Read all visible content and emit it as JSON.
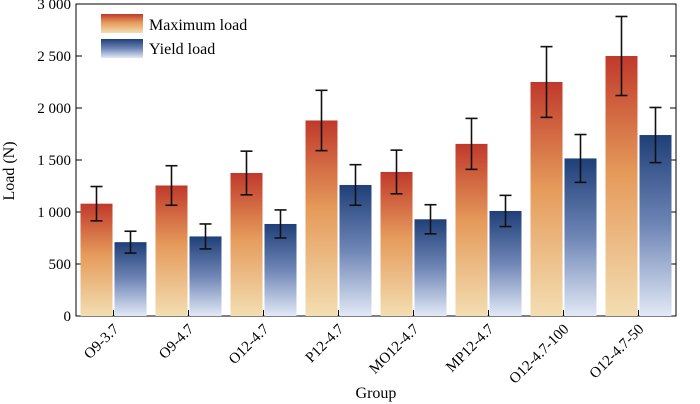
{
  "chart_data": {
    "type": "bar",
    "title": "",
    "xlabel": "Group",
    "ylabel": "Load (N)",
    "ylim": [
      0,
      3000
    ],
    "yticks": [
      0,
      500,
      1000,
      1500,
      2000,
      2500,
      3000
    ],
    "ytick_labels": [
      "0",
      "500",
      "1 000",
      "1 500",
      "2 000",
      "2 500",
      "3 000"
    ],
    "categories": [
      "O9-3.7",
      "O9-4.7",
      "O12-4.7",
      "P12-4.7",
      "MO12-4.7",
      "MP12-4.7",
      "O12-4.7-100",
      "O12-4.7-50"
    ],
    "series": [
      {
        "name": "Maximum load",
        "values": [
          1080,
          1255,
          1375,
          1880,
          1385,
          1655,
          2250,
          2500
        ],
        "errors": [
          165,
          190,
          210,
          290,
          210,
          245,
          340,
          380
        ],
        "color_top": "#c0392b",
        "color_bottom": "#f3deb2"
      },
      {
        "name": "Yield load",
        "values": [
          710,
          765,
          885,
          1260,
          930,
          1010,
          1515,
          1740
        ],
        "errors": [
          105,
          120,
          135,
          195,
          140,
          150,
          230,
          265
        ],
        "color_top": "#1f3f78",
        "color_bottom": "#e2e9f6"
      }
    ],
    "grid": false,
    "legend_position": "top-left"
  }
}
